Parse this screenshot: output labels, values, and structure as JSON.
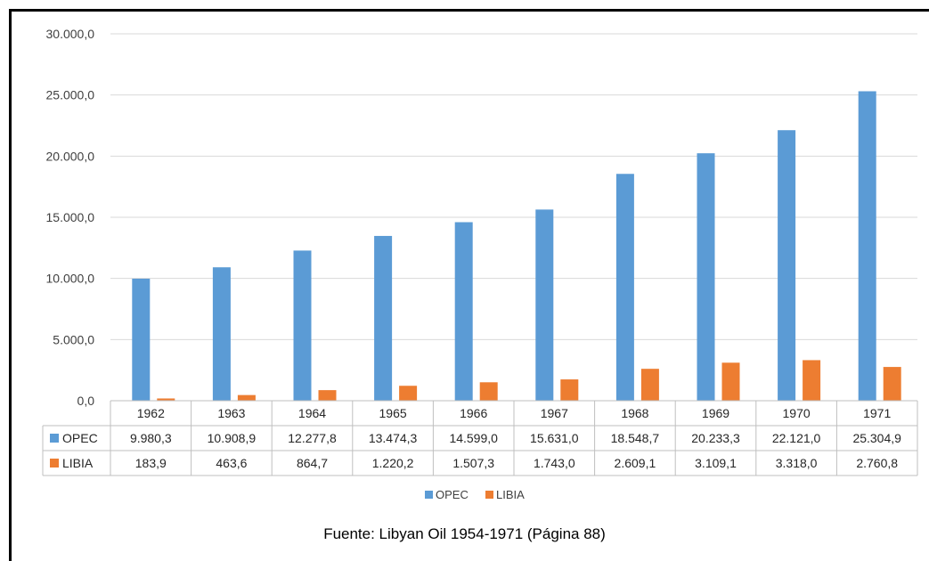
{
  "chart_data": {
    "type": "bar",
    "categories": [
      "1962",
      "1963",
      "1964",
      "1965",
      "1966",
      "1967",
      "1968",
      "1969",
      "1970",
      "1971"
    ],
    "series": [
      {
        "name": "OPEC",
        "color": "#5B9BD5",
        "values": [
          9980.3,
          10908.9,
          12277.8,
          13474.3,
          14599.0,
          15631.0,
          18548.7,
          20233.3,
          22121.0,
          25304.9
        ],
        "labels": [
          "9.980,3",
          "10.908,9",
          "12.277,8",
          "13.474,3",
          "14.599,0",
          "15.631,0",
          "18.548,7",
          "20.233,3",
          "22.121,0",
          "25.304,9"
        ]
      },
      {
        "name": "LIBIA",
        "color": "#ED7D31",
        "values": [
          183.9,
          463.6,
          864.7,
          1220.2,
          1507.3,
          1743.0,
          2609.1,
          3109.1,
          3318.0,
          2760.8
        ],
        "labels": [
          "183,9",
          "463,6",
          "864,7",
          "1.220,2",
          "1.507,3",
          "1.743,0",
          "2.609,1",
          "3.109,1",
          "3.318,0",
          "2.760,8"
        ]
      }
    ],
    "ylim": [
      0,
      30000
    ],
    "yticks": [
      0,
      5000,
      10000,
      15000,
      20000,
      25000,
      30000
    ],
    "ytick_labels": [
      "0,0",
      "5.000,0",
      "10.000,0",
      "15.000,0",
      "20.000,0",
      "25.000,0",
      "30.000,0"
    ],
    "grid": true,
    "legend": "bottom",
    "data_table": true
  },
  "source": "Fuente: Libyan Oil 1954-1971 (Página 88)"
}
